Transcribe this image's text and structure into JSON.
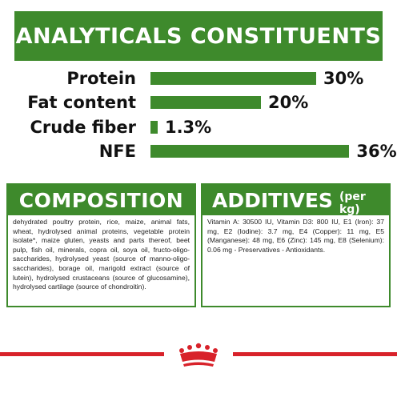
{
  "banner": {
    "title": "ANALYTICALS CONSTITUENTS"
  },
  "constituents": [
    {
      "label": "Protein",
      "value": "30%",
      "percent": 30
    },
    {
      "label": "Fat content",
      "value": "20%",
      "percent": 20
    },
    {
      "label": "Crude fiber",
      "value": "1.3%",
      "percent": 1.3
    },
    {
      "label": "NFE",
      "value": "36%",
      "percent": 36
    }
  ],
  "composition": {
    "title": "COMPOSITION",
    "text": "dehydrated poultry protein, rice, maize, animal fats, wheat, hydrolysed animal proteins, vegetable protein isolate*, maize gluten, yeasts and parts thereof, beet pulp, fish oil, minerals, copra oil, soya oil, fructo-oligo-saccharides, hydrolysed yeast (source of manno-oligo-saccharides), borage oil, marigold extract (source of lutein), hydrolysed crustaceans (source of glucosamine), hydrolysed cartilage (source of chondroitin)."
  },
  "additives": {
    "title": "ADDITIVES",
    "subtitle": "(per kg)",
    "text": "Vitamin A: 30500 IU, Vitamin D3: 800 IU, E1 (Iron): 37 mg, E2 (Iodine): 3.7 mg, E4 (Copper): 11 mg, E5 (Manganese): 48 mg, E6 (Zinc): 145 mg, E8 (Selenium): 0.06 mg - Preservatives - Antioxidants."
  },
  "colors": {
    "green": "#3e8a2c",
    "red": "#d8222a"
  },
  "icons": {
    "footer": "royal-canin-crown-logo"
  }
}
